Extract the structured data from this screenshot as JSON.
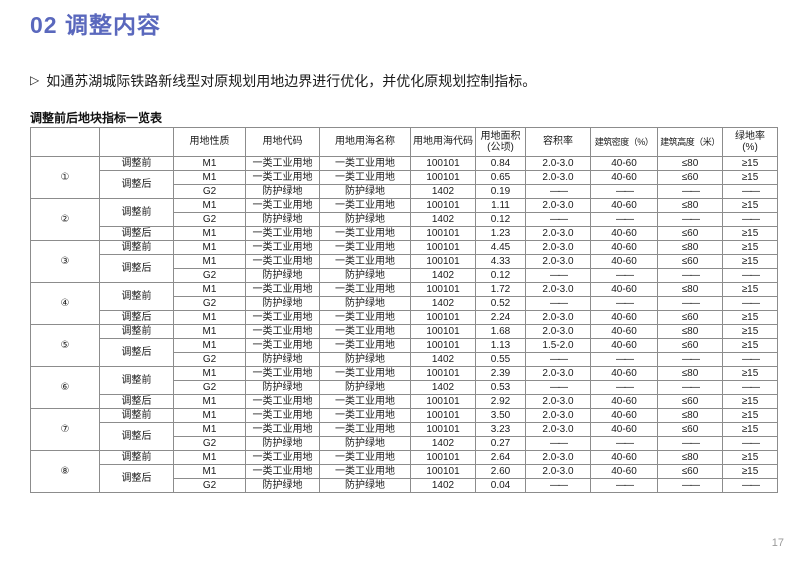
{
  "page": {
    "title": "02 调整内容",
    "accent_color": "#5A68BD",
    "bullet_marker": "▷",
    "bullet_text": "如通苏湖城际铁路新线型对原规划用地边界进行优化，并优化原规划控制指标。",
    "table_title": "调整前后地块指标一览表",
    "page_number": "17"
  },
  "table": {
    "headers": [
      "用地性质",
      "用地代码",
      "用地用海名称",
      "用地用海代码",
      "用地面积\n(公顷)",
      "容积率",
      "建筑密度（%）",
      "建筑高度（米）",
      "绿地率\n(%)"
    ],
    "columns": [
      "nature",
      "code",
      "sea_name",
      "sea_code",
      "area",
      "far",
      "density",
      "height",
      "green"
    ],
    "phase_labels": {
      "before": "调整前",
      "after": "调整后"
    },
    "dash": "——",
    "groups": [
      {
        "id": "①",
        "before": [
          [
            "M1",
            "一类工业用地",
            "一类工业用地",
            "100101",
            "0.84",
            "2.0-3.0",
            "40-60",
            "≤80",
            "≥15"
          ]
        ],
        "after": [
          [
            "M1",
            "一类工业用地",
            "一类工业用地",
            "100101",
            "0.65",
            "2.0-3.0",
            "40-60",
            "≤60",
            "≥15"
          ],
          [
            "G2",
            "防护绿地",
            "防护绿地",
            "1402",
            "0.19",
            "——",
            "——",
            "——",
            "——"
          ]
        ]
      },
      {
        "id": "②",
        "before": [
          [
            "M1",
            "一类工业用地",
            "一类工业用地",
            "100101",
            "1.11",
            "2.0-3.0",
            "40-60",
            "≤80",
            "≥15"
          ],
          [
            "G2",
            "防护绿地",
            "防护绿地",
            "1402",
            "0.12",
            "——",
            "——",
            "——",
            "——"
          ]
        ],
        "after": [
          [
            "M1",
            "一类工业用地",
            "一类工业用地",
            "100101",
            "1.23",
            "2.0-3.0",
            "40-60",
            "≤60",
            "≥15"
          ]
        ]
      },
      {
        "id": "③",
        "before": [
          [
            "M1",
            "一类工业用地",
            "一类工业用地",
            "100101",
            "4.45",
            "2.0-3.0",
            "40-60",
            "≤80",
            "≥15"
          ]
        ],
        "after": [
          [
            "M1",
            "一类工业用地",
            "一类工业用地",
            "100101",
            "4.33",
            "2.0-3.0",
            "40-60",
            "≤60",
            "≥15"
          ],
          [
            "G2",
            "防护绿地",
            "防护绿地",
            "1402",
            "0.12",
            "——",
            "——",
            "——",
            "——"
          ]
        ]
      },
      {
        "id": "④",
        "before": [
          [
            "M1",
            "一类工业用地",
            "一类工业用地",
            "100101",
            "1.72",
            "2.0-3.0",
            "40-60",
            "≤80",
            "≥15"
          ],
          [
            "G2",
            "防护绿地",
            "防护绿地",
            "1402",
            "0.52",
            "——",
            "——",
            "——",
            "——"
          ]
        ],
        "after": [
          [
            "M1",
            "一类工业用地",
            "一类工业用地",
            "100101",
            "2.24",
            "2.0-3.0",
            "40-60",
            "≤60",
            "≥15"
          ]
        ]
      },
      {
        "id": "⑤",
        "before": [
          [
            "M1",
            "一类工业用地",
            "一类工业用地",
            "100101",
            "1.68",
            "2.0-3.0",
            "40-60",
            "≤80",
            "≥15"
          ]
        ],
        "after": [
          [
            "M1",
            "一类工业用地",
            "一类工业用地",
            "100101",
            "1.13",
            "1.5-2.0",
            "40-60",
            "≤60",
            "≥15"
          ],
          [
            "G2",
            "防护绿地",
            "防护绿地",
            "1402",
            "0.55",
            "——",
            "——",
            "——",
            "——"
          ]
        ]
      },
      {
        "id": "⑥",
        "before": [
          [
            "M1",
            "一类工业用地",
            "一类工业用地",
            "100101",
            "2.39",
            "2.0-3.0",
            "40-60",
            "≤80",
            "≥15"
          ],
          [
            "G2",
            "防护绿地",
            "防护绿地",
            "1402",
            "0.53",
            "——",
            "——",
            "——",
            "——"
          ]
        ],
        "after": [
          [
            "M1",
            "一类工业用地",
            "一类工业用地",
            "100101",
            "2.92",
            "2.0-3.0",
            "40-60",
            "≤60",
            "≥15"
          ]
        ]
      },
      {
        "id": "⑦",
        "before": [
          [
            "M1",
            "一类工业用地",
            "一类工业用地",
            "100101",
            "3.50",
            "2.0-3.0",
            "40-60",
            "≤80",
            "≥15"
          ]
        ],
        "after": [
          [
            "M1",
            "一类工业用地",
            "一类工业用地",
            "100101",
            "3.23",
            "2.0-3.0",
            "40-60",
            "≤60",
            "≥15"
          ],
          [
            "G2",
            "防护绿地",
            "防护绿地",
            "1402",
            "0.27",
            "——",
            "——",
            "——",
            "——"
          ]
        ]
      },
      {
        "id": "⑧",
        "before": [
          [
            "M1",
            "一类工业用地",
            "一类工业用地",
            "100101",
            "2.64",
            "2.0-3.0",
            "40-60",
            "≤80",
            "≥15"
          ]
        ],
        "after": [
          [
            "M1",
            "一类工业用地",
            "一类工业用地",
            "100101",
            "2.60",
            "2.0-3.0",
            "40-60",
            "≤60",
            "≥15"
          ],
          [
            "G2",
            "防护绿地",
            "防护绿地",
            "1402",
            "0.04",
            "——",
            "——",
            "——",
            "——"
          ]
        ]
      }
    ]
  }
}
